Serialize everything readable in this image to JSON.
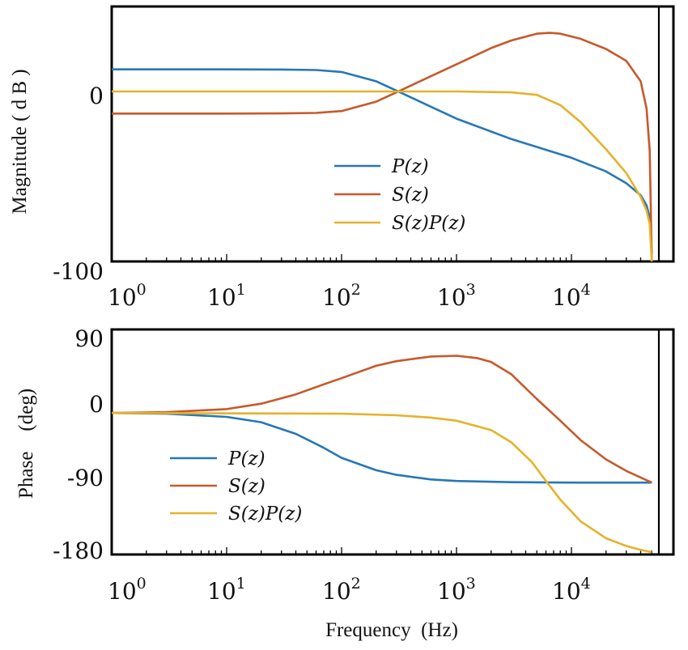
{
  "chart_data": [
    {
      "type": "line",
      "id": "magnitude",
      "title": "",
      "xlabel": "",
      "ylabel": "Magnitude ( d B )",
      "xscale": "log",
      "xlim": [
        1,
        80000
      ],
      "ylim": [
        -100,
        50
      ],
      "nyquist_hz": 50000,
      "yticks": [
        {
          "value": 0,
          "label": "0"
        },
        {
          "value": -100,
          "label": "-100"
        }
      ],
      "xticks": [
        {
          "value": 1,
          "base": "10",
          "exp": "0"
        },
        {
          "value": 10,
          "base": "10",
          "exp": "1"
        },
        {
          "value": 100,
          "base": "10",
          "exp": "2"
        },
        {
          "value": 1000,
          "base": "10",
          "exp": "3"
        },
        {
          "value": 10000,
          "base": "10",
          "exp": "4"
        }
      ],
      "legend": {
        "position": "center-bottom",
        "entries": [
          "P(z)",
          "S(z)",
          "S(z)P(z)"
        ]
      },
      "series": [
        {
          "name": "P(z)",
          "color": "#2677b6",
          "x": [
            1,
            10,
            30,
            60,
            100,
            200,
            300,
            600,
            1000,
            3000,
            10000,
            20000,
            30000,
            40000,
            45000,
            48000,
            50000
          ],
          "y": [
            13,
            13,
            12.9,
            12.6,
            11.5,
            6,
            0.5,
            -9,
            -16,
            -28,
            -39,
            -47,
            -54,
            -61,
            -67,
            -74,
            -95
          ]
        },
        {
          "name": "S(z)",
          "color": "#c8582a",
          "x": [
            1,
            10,
            30,
            60,
            100,
            200,
            300,
            600,
            1000,
            2000,
            3000,
            5000,
            6500,
            8000,
            12000,
            20000,
            30000,
            40000,
            45000,
            48000,
            50000
          ],
          "y": [
            -13,
            -13,
            -12.9,
            -12.6,
            -11.5,
            -6,
            -0.5,
            9,
            16,
            25.5,
            30,
            34,
            34.5,
            34,
            31,
            25,
            18,
            6,
            -10,
            -35,
            -100
          ]
        },
        {
          "name": "S(z)P(z)",
          "color": "#e6b22a",
          "x": [
            1,
            100,
            1000,
            3000,
            5000,
            8000,
            12000,
            20000,
            30000,
            40000,
            45000,
            48000,
            50000
          ],
          "y": [
            0,
            0,
            0,
            -0.5,
            -2,
            -8,
            -18,
            -34,
            -48,
            -62,
            -70,
            -78,
            -100
          ]
        }
      ]
    },
    {
      "type": "line",
      "id": "phase",
      "title": "",
      "xlabel": "Frequency  (Hz)",
      "ylabel": "Phase    (deg)",
      "xscale": "log",
      "xlim": [
        1,
        80000
      ],
      "ylim": [
        -183,
        108
      ],
      "nyquist_hz": 50000,
      "yticks": [
        {
          "value": 90,
          "label": "90"
        },
        {
          "value": 0,
          "label": "0"
        },
        {
          "value": -90,
          "label": "-90"
        },
        {
          "value": -180,
          "label": "-180"
        }
      ],
      "xticks": [
        {
          "value": 1,
          "base": "10",
          "exp": "0"
        },
        {
          "value": 10,
          "base": "10",
          "exp": "1"
        },
        {
          "value": 100,
          "base": "10",
          "exp": "2"
        },
        {
          "value": 1000,
          "base": "10",
          "exp": "3"
        },
        {
          "value": 10000,
          "base": "10",
          "exp": "4"
        }
      ],
      "legend": {
        "position": "bottom-left",
        "entries": [
          "P(z)",
          "S(z)",
          "S(z)P(z)"
        ]
      },
      "series": [
        {
          "name": "P(z)",
          "color": "#2677b6",
          "x": [
            1,
            3,
            10,
            20,
            40,
            70,
            100,
            200,
            300,
            600,
            1000,
            3000,
            10000,
            50000
          ],
          "y": [
            0,
            -1,
            -5,
            -12,
            -27,
            -45,
            -58,
            -74,
            -80,
            -86,
            -88,
            -89.5,
            -90,
            -90
          ]
        },
        {
          "name": "S(z)",
          "color": "#c8582a",
          "x": [
            1,
            3,
            10,
            20,
            40,
            70,
            100,
            200,
            300,
            600,
            1000,
            1500,
            2000,
            3000,
            5000,
            8000,
            12000,
            20000,
            30000,
            50000
          ],
          "y": [
            0,
            1,
            5,
            12,
            24,
            37,
            45,
            61,
            67,
            73,
            74,
            71,
            66,
            50,
            18,
            -10,
            -35,
            -60,
            -75,
            -90
          ]
        },
        {
          "name": "S(z)P(z)",
          "color": "#e6b22a",
          "x": [
            1,
            100,
            300,
            600,
            1000,
            2000,
            3000,
            4500,
            6000,
            8000,
            12000,
            20000,
            30000,
            40000,
            50000
          ],
          "y": [
            0,
            -1,
            -3,
            -6,
            -10,
            -22,
            -38,
            -63,
            -88,
            -112,
            -140,
            -162,
            -172,
            -177,
            -180
          ]
        }
      ]
    }
  ]
}
